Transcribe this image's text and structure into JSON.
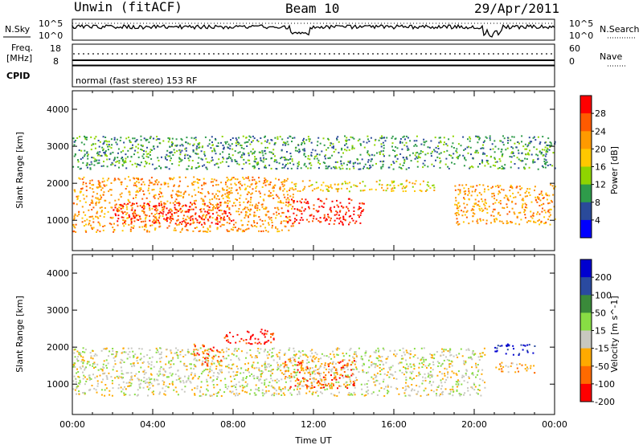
{
  "header": {
    "station": "Unwin (fitACF)",
    "beam": "Beam 10",
    "date": "29/Apr/2011"
  },
  "strip_panels": {
    "nsky_label": "N.Sky",
    "nsky_ticks": [
      "10^5",
      "10^0"
    ],
    "nsearch_label": "N.Search",
    "nsearch_ticks": [
      "10^5",
      "10^0"
    ],
    "freq_label_1": "Freq.",
    "freq_label_2": "[MHz]",
    "freq_ticks": [
      "18",
      "8"
    ],
    "nave_label": "Nave",
    "nave_ticks": [
      "60",
      "0"
    ],
    "cpid_label": "CPID",
    "cpid_text": "normal (fast stereo) 153 RF"
  },
  "chart_data": [
    {
      "type": "heatmap",
      "panel": "power",
      "ylabel": "Slant Range [km]",
      "xlabel": "",
      "ylim": [
        180,
        4500
      ],
      "xlim_hours": [
        0,
        24
      ],
      "ytick_labels": [
        "1000",
        "2000",
        "3000",
        "4000"
      ],
      "colorbar_label": "Power [dB]",
      "colorbar_ticks": [
        "28",
        "24",
        "20",
        "16",
        "12",
        "8",
        "4"
      ],
      "colorbar_colors": [
        "#ff0000",
        "#ff5a00",
        "#ff9a00",
        "#ffc800",
        "#8fd400",
        "#2e9b4a",
        "#2a4a9a",
        "#0000ff"
      ],
      "scatter_regions": [
        {
          "t0": 0.0,
          "t1": 11.0,
          "r0": 700,
          "r1": 2200,
          "value": "20"
        },
        {
          "t0": 2.0,
          "t1": 8.0,
          "r0": 900,
          "r1": 1500,
          "value": "28"
        },
        {
          "t0": 10.5,
          "t1": 14.5,
          "r0": 900,
          "r1": 1600,
          "value": "28"
        },
        {
          "t0": 11.0,
          "t1": 18.0,
          "r0": 1800,
          "r1": 2100,
          "value": "16"
        },
        {
          "t0": 19.0,
          "t1": 24.0,
          "r0": 900,
          "r1": 2000,
          "value": "20"
        },
        {
          "t0": 0.0,
          "t1": 24.0,
          "r0": 2400,
          "r1": 3300,
          "value": "8"
        }
      ]
    },
    {
      "type": "heatmap",
      "panel": "velocity",
      "ylabel": "Slant Range [km]",
      "xlabel": "Time UT",
      "ylim": [
        180,
        4500
      ],
      "xlim_hours": [
        0,
        24
      ],
      "ytick_labels": [
        "1000",
        "2000",
        "3000",
        "4000"
      ],
      "xtick_labels": [
        "00:00",
        "04:00",
        "08:00",
        "12:00",
        "16:00",
        "20:00",
        "00:00"
      ],
      "colorbar_label": "Velocity [m s^-1]",
      "colorbar_ticks": [
        "200",
        "100",
        "50",
        "15",
        "-15",
        "-50",
        "-100",
        "-200"
      ],
      "colorbar_colors": [
        "#0000d0",
        "#2a4aa0",
        "#3a8a3a",
        "#88dd44",
        "#c8c8c0",
        "#ffaa00",
        "#ff6a00",
        "#ff0000"
      ],
      "scatter_regions": [
        {
          "t0": 0.0,
          "t1": 20.5,
          "r0": 700,
          "r1": 2000,
          "value": "-15"
        },
        {
          "t0": 6.0,
          "t1": 7.5,
          "r0": 1500,
          "r1": 2100,
          "value": "-100"
        },
        {
          "t0": 7.5,
          "t1": 10.0,
          "r0": 2100,
          "r1": 2500,
          "value": "-200"
        },
        {
          "t0": 10.5,
          "t1": 14.0,
          "r0": 900,
          "r1": 1700,
          "value": "-100"
        },
        {
          "t0": 21.0,
          "t1": 23.0,
          "r0": 1800,
          "r1": 2100,
          "value": "200"
        },
        {
          "t0": 21.0,
          "t1": 23.0,
          "r0": 1300,
          "r1": 1600,
          "value": "-50"
        }
      ]
    }
  ]
}
